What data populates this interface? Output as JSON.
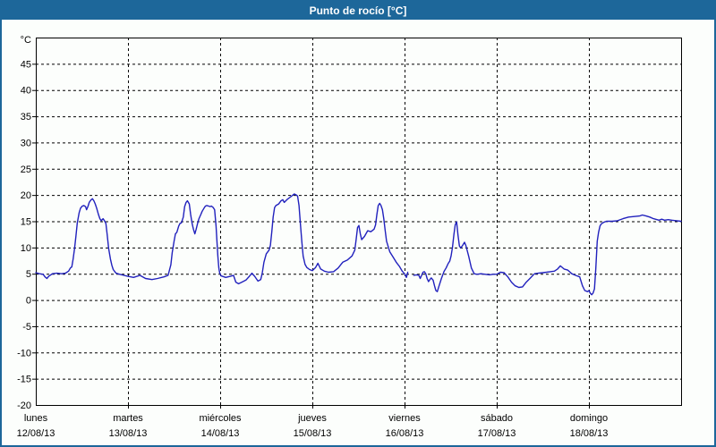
{
  "window": {
    "title": "Punto de rocío [°C]"
  },
  "colors": {
    "titlebar": "#1d679a",
    "window_border": "#1d679a",
    "background": "#fcfefc",
    "axis": "#000000",
    "grid": "#000000",
    "line": "#2121bd"
  },
  "chart_data": {
    "type": "line",
    "title": "Punto de rocío [°C]",
    "xlabel": "",
    "ylabel": "°C",
    "grid": "dashed",
    "legend": "none",
    "y_axis": {
      "min": -20,
      "max": 50,
      "tick_step": 5,
      "unit_label": "°C",
      "tick_labels": [
        "45",
        "40",
        "35",
        "30",
        "25",
        "20",
        "15",
        "10",
        "5",
        "0",
        "-5",
        "-10",
        "-15",
        "-20"
      ]
    },
    "x_axis": {
      "span_days": 7,
      "days": [
        {
          "name": "lunes",
          "date": "12/08/13"
        },
        {
          "name": "martes",
          "date": "13/08/13"
        },
        {
          "name": "miércoles",
          "date": "14/08/13"
        },
        {
          "name": "jueves",
          "date": "15/08/13"
        },
        {
          "name": "viernes",
          "date": "16/08/13"
        },
        {
          "name": "sábado",
          "date": "17/08/13"
        },
        {
          "name": "domingo",
          "date": "18/08/13"
        }
      ]
    },
    "series": [
      {
        "name": "Punto de rocío",
        "x_unit": "days since lunes 12/08/13 00:00",
        "y_unit": "°C",
        "segments": [
          [
            [
              0,
              5.2
            ],
            [
              0.04,
              5.0
            ],
            [
              0.08,
              4.9
            ],
            [
              0.1,
              4.4
            ],
            [
              0.12,
              4.1
            ],
            [
              0.14,
              4.5
            ],
            [
              0.18,
              5.0
            ],
            [
              0.23,
              5.1
            ],
            [
              0.28,
              5.0
            ],
            [
              0.32,
              5.1
            ],
            [
              0.355,
              5.5
            ],
            [
              0.375,
              6.1
            ],
            [
              0.39,
              6.3
            ],
            [
              0.405,
              7.8
            ],
            [
              0.42,
              9.8
            ],
            [
              0.435,
              12.1
            ],
            [
              0.45,
              14.6
            ],
            [
              0.47,
              16.6
            ],
            [
              0.485,
              17.5
            ],
            [
              0.505,
              17.9
            ],
            [
              0.52,
              18.0
            ],
            [
              0.54,
              17.8
            ],
            [
              0.55,
              17.2
            ],
            [
              0.565,
              17.8
            ],
            [
              0.58,
              18.6
            ],
            [
              0.6,
              19.1
            ],
            [
              0.615,
              19.3
            ],
            [
              0.63,
              18.9
            ],
            [
              0.645,
              18.3
            ],
            [
              0.66,
              17.5
            ],
            [
              0.68,
              16.3
            ],
            [
              0.695,
              15.5
            ],
            [
              0.71,
              15.1
            ],
            [
              0.73,
              15.5
            ],
            [
              0.745,
              15.1
            ],
            [
              0.76,
              14.6
            ],
            [
              0.775,
              12.4
            ],
            [
              0.79,
              9.8
            ],
            [
              0.81,
              7.8
            ],
            [
              0.825,
              6.6
            ],
            [
              0.84,
              5.8
            ],
            [
              0.87,
              5.1
            ],
            [
              0.91,
              4.9
            ],
            [
              0.955,
              4.7
            ],
            [
              1.0,
              4.5
            ],
            [
              1.06,
              4.3
            ],
            [
              1.13,
              4.7
            ],
            [
              1.19,
              4.1
            ],
            [
              1.26,
              3.9
            ],
            [
              1.32,
              4.1
            ],
            [
              1.39,
              4.4
            ],
            [
              1.435,
              4.7
            ],
            [
              1.465,
              6.7
            ],
            [
              1.48,
              9.0
            ],
            [
              1.5,
              11.2
            ],
            [
              1.515,
              12.6
            ],
            [
              1.53,
              12.9
            ],
            [
              1.55,
              14.1
            ],
            [
              1.565,
              14.6
            ],
            [
              1.58,
              14.7
            ],
            [
              1.6,
              15.8
            ],
            [
              1.615,
              17.8
            ],
            [
              1.63,
              18.6
            ],
            [
              1.645,
              18.9
            ],
            [
              1.665,
              18.3
            ],
            [
              1.68,
              16.3
            ],
            [
              1.695,
              14.6
            ],
            [
              1.71,
              13.5
            ],
            [
              1.725,
              12.6
            ],
            [
              1.74,
              13.5
            ],
            [
              1.755,
              14.6
            ],
            [
              1.77,
              15.5
            ],
            [
              1.79,
              16.3
            ],
            [
              1.805,
              16.9
            ],
            [
              1.825,
              17.5
            ],
            [
              1.84,
              17.9
            ],
            [
              1.855,
              18.0
            ],
            [
              1.875,
              17.9
            ],
            [
              1.89,
              17.8
            ],
            [
              1.905,
              17.9
            ],
            [
              1.925,
              17.6
            ],
            [
              1.94,
              17.2
            ],
            [
              1.955,
              14.1
            ],
            [
              1.965,
              11.2
            ],
            [
              1.975,
              8.4
            ],
            [
              1.985,
              6.1
            ],
            [
              1.995,
              5.1
            ],
            [
              2.01,
              4.6
            ],
            [
              2.06,
              4.3
            ],
            [
              2.11,
              4.5
            ],
            [
              2.145,
              4.7
            ],
            [
              2.17,
              3.4
            ],
            [
              2.2,
              3.1
            ],
            [
              2.235,
              3.4
            ],
            [
              2.28,
              3.8
            ],
            [
              2.32,
              4.6
            ],
            [
              2.345,
              5.1
            ],
            [
              2.375,
              4.5
            ],
            [
              2.41,
              3.6
            ],
            [
              2.44,
              3.9
            ],
            [
              2.455,
              5.0
            ],
            [
              2.475,
              7.2
            ],
            [
              2.5,
              8.8
            ],
            [
              2.53,
              9.5
            ],
            [
              2.545,
              10.4
            ],
            [
              2.56,
              13.0
            ],
            [
              2.575,
              15.8
            ],
            [
              2.59,
              17.6
            ],
            [
              2.605,
              18.0
            ],
            [
              2.635,
              18.3
            ],
            [
              2.66,
              18.9
            ],
            [
              2.68,
              19.1
            ],
            [
              2.695,
              18.6
            ],
            [
              2.73,
              19.2
            ],
            [
              2.76,
              19.6
            ],
            [
              2.79,
              20.0
            ],
            [
              2.805,
              20.2
            ],
            [
              2.825,
              20.0
            ],
            [
              2.84,
              19.8
            ],
            [
              2.855,
              18.0
            ],
            [
              2.87,
              14.6
            ],
            [
              2.885,
              11.2
            ],
            [
              2.9,
              8.4
            ],
            [
              2.92,
              6.8
            ],
            [
              2.94,
              6.2
            ],
            [
              2.97,
              5.8
            ],
            [
              3.0,
              5.6
            ],
            [
              3.035,
              6.2
            ],
            [
              3.06,
              7.0
            ],
            [
              3.09,
              5.9
            ],
            [
              3.13,
              5.5
            ],
            [
              3.175,
              5.3
            ],
            [
              3.23,
              5.4
            ],
            [
              3.28,
              6.1
            ],
            [
              3.33,
              7.2
            ],
            [
              3.38,
              7.6
            ],
            [
              3.43,
              8.4
            ],
            [
              3.46,
              9.5
            ],
            [
              3.475,
              11.5
            ],
            [
              3.49,
              13.8
            ],
            [
              3.505,
              14.2
            ],
            [
              3.52,
              12.6
            ],
            [
              3.535,
              11.5
            ],
            [
              3.565,
              12.1
            ],
            [
              3.6,
              13.2
            ],
            [
              3.635,
              13.0
            ],
            [
              3.67,
              13.5
            ],
            [
              3.685,
              14.3
            ],
            [
              3.7,
              16.3
            ],
            [
              3.715,
              18.0
            ],
            [
              3.73,
              18.4
            ],
            [
              3.745,
              18.0
            ],
            [
              3.76,
              17.2
            ],
            [
              3.775,
              15.5
            ],
            [
              3.79,
              13.2
            ],
            [
              3.805,
              11.2
            ],
            [
              3.84,
              9.2
            ],
            [
              3.875,
              8.2
            ],
            [
              3.91,
              7.2
            ],
            [
              3.945,
              6.4
            ],
            [
              3.975,
              5.5
            ],
            [
              4.005,
              4.9
            ],
            [
              4.02,
              4.3
            ],
            [
              4.035,
              5.3
            ]
          ],
          [
            [
              4.1,
              4.7
            ],
            [
              4.13,
              4.8
            ],
            [
              4.155,
              4.7
            ],
            [
              4.17,
              4.1
            ],
            [
              4.185,
              4.7
            ],
            [
              4.2,
              5.3
            ],
            [
              4.215,
              5.4
            ],
            [
              4.23,
              5.0
            ],
            [
              4.245,
              4.1
            ],
            [
              4.26,
              3.5
            ],
            [
              4.275,
              3.9
            ],
            [
              4.29,
              4.2
            ],
            [
              4.31,
              3.8
            ],
            [
              4.325,
              2.7
            ],
            [
              4.34,
              1.8
            ],
            [
              4.355,
              1.6
            ],
            [
              4.375,
              2.7
            ],
            [
              4.4,
              4.1
            ],
            [
              4.43,
              5.5
            ],
            [
              4.45,
              6.1
            ],
            [
              4.475,
              7.0
            ],
            [
              4.49,
              7.4
            ],
            [
              4.505,
              8.4
            ],
            [
              4.52,
              10.1
            ],
            [
              4.535,
              12.4
            ],
            [
              4.55,
              14.3
            ],
            [
              4.565,
              14.9
            ],
            [
              4.58,
              12.4
            ],
            [
              4.595,
              10.3
            ],
            [
              4.61,
              9.9
            ],
            [
              4.63,
              10.4
            ],
            [
              4.65,
              11.0
            ],
            [
              4.665,
              10.4
            ],
            [
              4.695,
              8.4
            ],
            [
              4.725,
              6.1
            ],
            [
              4.755,
              5.0
            ],
            [
              4.785,
              4.9
            ],
            [
              4.83,
              5.0
            ],
            [
              4.875,
              4.9
            ],
            [
              4.92,
              4.8
            ],
            [
              4.96,
              4.9
            ],
            [
              5.0,
              4.9
            ],
            [
              5.04,
              5.3
            ],
            [
              5.08,
              5.2
            ],
            [
              5.12,
              4.4
            ],
            [
              5.16,
              3.4
            ],
            [
              5.2,
              2.7
            ],
            [
              5.24,
              2.4
            ],
            [
              5.28,
              2.5
            ],
            [
              5.32,
              3.4
            ],
            [
              5.36,
              4.1
            ],
            [
              5.41,
              5.0
            ],
            [
              5.45,
              5.1
            ],
            [
              5.5,
              5.2
            ],
            [
              5.54,
              5.3
            ],
            [
              5.58,
              5.4
            ],
            [
              5.625,
              5.5
            ],
            [
              5.66,
              5.9
            ],
            [
              5.69,
              6.5
            ],
            [
              5.73,
              5.9
            ],
            [
              5.77,
              5.7
            ],
            [
              5.815,
              5.0
            ],
            [
              5.855,
              4.7
            ],
            [
              5.9,
              4.4
            ],
            [
              5.93,
              2.7
            ],
            [
              5.955,
              1.8
            ],
            [
              5.985,
              1.6
            ],
            [
              6.0,
              1.8
            ],
            [
              6.015,
              1.3
            ],
            [
              6.03,
              1.0
            ],
            [
              6.045,
              1.3
            ],
            [
              6.06,
              2.1
            ],
            [
              6.075,
              6.0
            ],
            [
              6.09,
              11.2
            ],
            [
              6.105,
              12.9
            ],
            [
              6.12,
              14.1
            ],
            [
              6.135,
              14.5
            ],
            [
              6.16,
              14.8
            ],
            [
              6.19,
              15.0
            ],
            [
              6.25,
              15.0
            ],
            [
              6.31,
              15.1
            ],
            [
              6.37,
              15.5
            ],
            [
              6.43,
              15.8
            ],
            [
              6.49,
              15.9
            ],
            [
              6.55,
              16.0
            ],
            [
              6.58,
              16.2
            ],
            [
              6.62,
              16.0
            ],
            [
              6.66,
              15.8
            ],
            [
              6.7,
              15.5
            ],
            [
              6.76,
              15.2
            ],
            [
              6.79,
              15.4
            ],
            [
              6.82,
              15.2
            ],
            [
              6.86,
              15.3
            ],
            [
              6.9,
              15.2
            ],
            [
              6.95,
              15.1
            ],
            [
              7.0,
              15.0
            ]
          ]
        ]
      }
    ]
  }
}
